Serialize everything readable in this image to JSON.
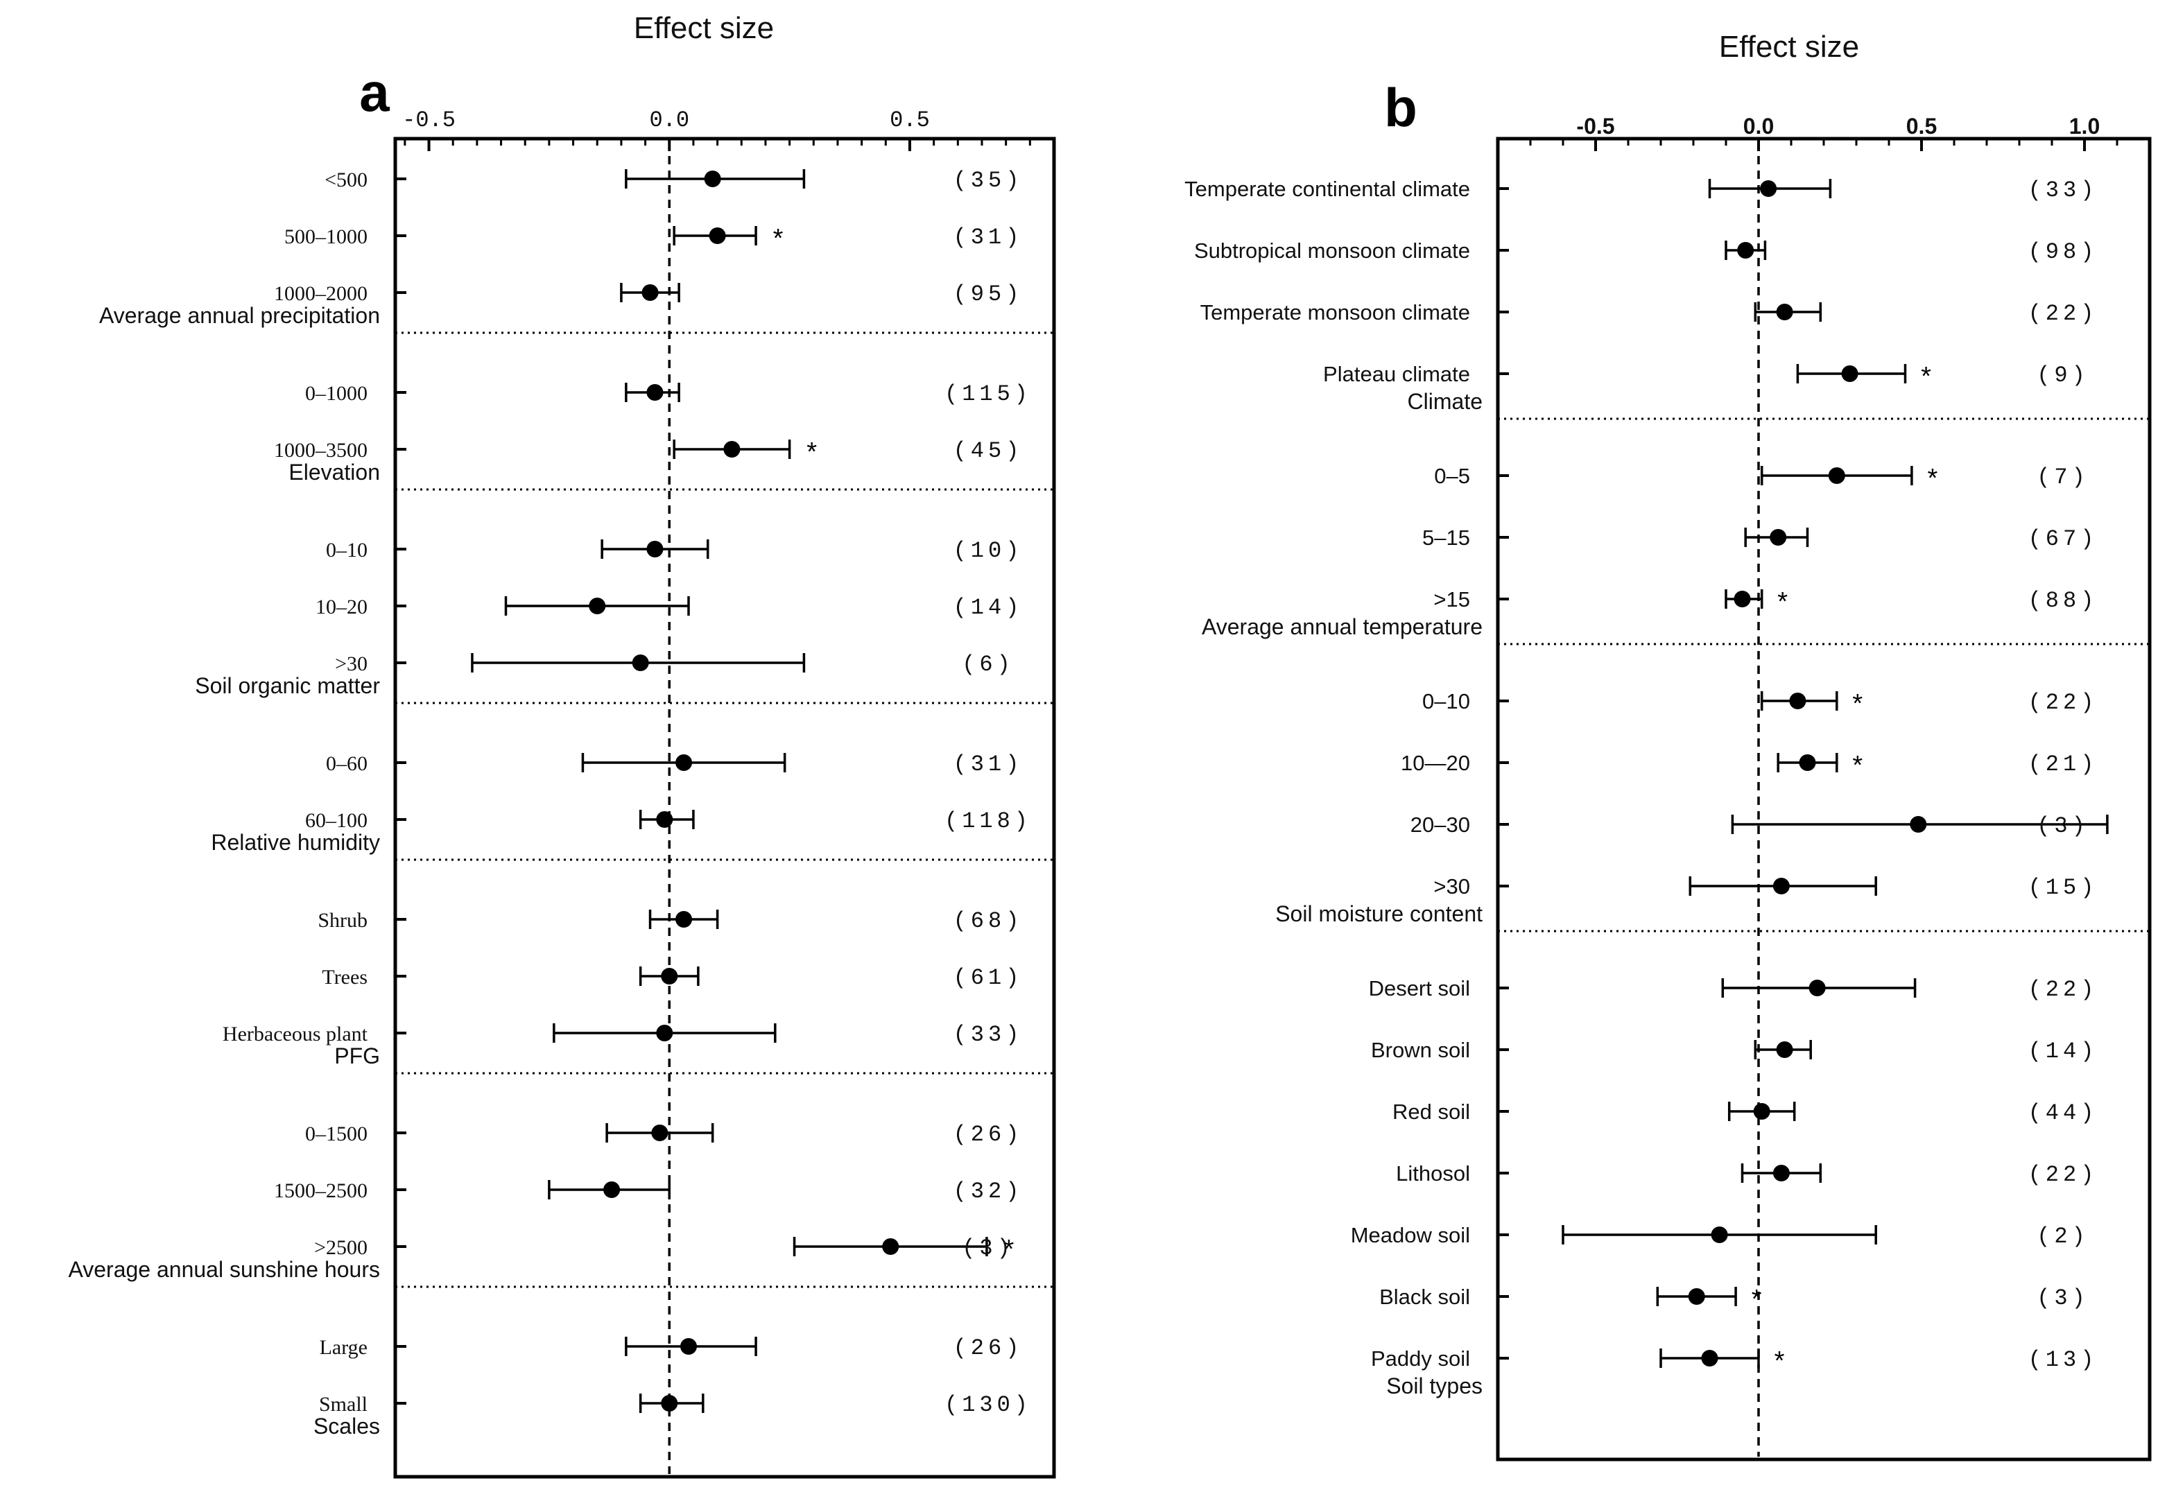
{
  "chart_data": [
    {
      "type": "scatter",
      "panel_label": "a",
      "title": "Effect size",
      "xlim": [
        -0.57,
        0.8
      ],
      "x_ticks": [
        -0.5,
        0.0,
        0.5
      ],
      "x_tick_labels": [
        "-0.5",
        "0.0",
        "0.5"
      ],
      "reference_line": 0.0,
      "rows": [
        {
          "label": "<500",
          "mean": 0.09,
          "lo": -0.09,
          "hi": 0.28,
          "n": "(35)",
          "sig": ""
        },
        {
          "label": "500–1000",
          "mean": 0.1,
          "lo": 0.01,
          "hi": 0.18,
          "n": "(31)",
          "sig": "*"
        },
        {
          "label": "1000–2000",
          "mean": -0.04,
          "lo": -0.1,
          "hi": 0.02,
          "n": "(95)",
          "sig": ""
        },
        {
          "group": "Average annual precipitation"
        },
        {
          "label": "0–1000",
          "mean": -0.03,
          "lo": -0.09,
          "hi": 0.02,
          "n": "(115)",
          "sig": ""
        },
        {
          "label": "1000–3500",
          "mean": 0.13,
          "lo": 0.01,
          "hi": 0.25,
          "n": "(45)",
          "sig": "*"
        },
        {
          "group": "Elevation"
        },
        {
          "label": "0–10",
          "mean": -0.03,
          "lo": -0.14,
          "hi": 0.08,
          "n": "(10)",
          "sig": ""
        },
        {
          "label": "10–20",
          "mean": -0.15,
          "lo": -0.34,
          "hi": 0.04,
          "n": "(14)",
          "sig": ""
        },
        {
          "label": ">30",
          "mean": -0.06,
          "lo": -0.41,
          "hi": 0.28,
          "n": "(6)",
          "sig": ""
        },
        {
          "group": "Soil organic matter"
        },
        {
          "label": "0–60",
          "mean": 0.03,
          "lo": -0.18,
          "hi": 0.24,
          "n": "(31)",
          "sig": ""
        },
        {
          "label": "60–100",
          "mean": -0.01,
          "lo": -0.06,
          "hi": 0.05,
          "n": "(118)",
          "sig": ""
        },
        {
          "group": "Relative humidity"
        },
        {
          "label": "Shrub",
          "mean": 0.03,
          "lo": -0.04,
          "hi": 0.1,
          "n": "(68)",
          "sig": ""
        },
        {
          "label": "Trees",
          "mean": 0.0,
          "lo": -0.06,
          "hi": 0.06,
          "n": "(61)",
          "sig": ""
        },
        {
          "label": "Herbaceous plant",
          "mean": -0.01,
          "lo": -0.24,
          "hi": 0.22,
          "n": "(33)",
          "sig": ""
        },
        {
          "group": "PFG"
        },
        {
          "label": "0–1500",
          "mean": -0.02,
          "lo": -0.13,
          "hi": 0.09,
          "n": "(26)",
          "sig": ""
        },
        {
          "label": "1500–2500",
          "mean": -0.12,
          "lo": -0.25,
          "hi": 0.0,
          "n": "(32)",
          "sig": ""
        },
        {
          "label": ">2500",
          "mean": 0.46,
          "lo": 0.26,
          "hi": 0.66,
          "n": "(3)",
          "sig": "*"
        },
        {
          "group": "Average annual sunshine hours"
        },
        {
          "label": "Large",
          "mean": 0.04,
          "lo": -0.09,
          "hi": 0.18,
          "n": "(26)",
          "sig": ""
        },
        {
          "label": "Small",
          "mean": 0.0,
          "lo": -0.06,
          "hi": 0.07,
          "n": "(130)",
          "sig": ""
        },
        {
          "group": "Scales"
        }
      ]
    },
    {
      "type": "scatter",
      "panel_label": "b",
      "title": "Effect size",
      "xlim": [
        -0.8,
        1.2
      ],
      "x_ticks": [
        -0.5,
        0.0,
        0.5,
        1.0
      ],
      "x_tick_labels": [
        "-0.5",
        "0.0",
        "0.5",
        "1.0"
      ],
      "reference_line": 0.0,
      "rows": [
        {
          "label": "Temperate continental climate",
          "mean": 0.03,
          "lo": -0.15,
          "hi": 0.22,
          "n": "(33)",
          "sig": ""
        },
        {
          "label": "Subtropical monsoon climate",
          "mean": -0.04,
          "lo": -0.1,
          "hi": 0.02,
          "n": "(98)",
          "sig": ""
        },
        {
          "label": "Temperate monsoon climate",
          "mean": 0.08,
          "lo": -0.01,
          "hi": 0.19,
          "n": "(22)",
          "sig": ""
        },
        {
          "label": "Plateau climate",
          "mean": 0.28,
          "lo": 0.12,
          "hi": 0.45,
          "n": "(9)",
          "sig": "*"
        },
        {
          "group": "Climate"
        },
        {
          "label": "0–5",
          "mean": 0.24,
          "lo": 0.01,
          "hi": 0.47,
          "n": "(7)",
          "sig": "*"
        },
        {
          "label": "5–15",
          "mean": 0.06,
          "lo": -0.04,
          "hi": 0.15,
          "n": "(67)",
          "sig": ""
        },
        {
          "label": ">15",
          "mean": -0.05,
          "lo": -0.1,
          "hi": 0.01,
          "n": "(88)",
          "sig": "*"
        },
        {
          "group": "Average annual temperature"
        },
        {
          "label": "0–10",
          "mean": 0.12,
          "lo": 0.01,
          "hi": 0.24,
          "n": "(22)",
          "sig": "*"
        },
        {
          "label": "10—20",
          "mean": 0.15,
          "lo": 0.06,
          "hi": 0.24,
          "n": "(21)",
          "sig": "*"
        },
        {
          "label": "20–30",
          "mean": 0.49,
          "lo": -0.08,
          "hi": 1.07,
          "n": "(3)",
          "sig": ""
        },
        {
          "label": ">30",
          "mean": 0.07,
          "lo": -0.21,
          "hi": 0.36,
          "n": "(15)",
          "sig": ""
        },
        {
          "group": "Soil moisture content"
        },
        {
          "label": "Desert soil",
          "mean": 0.18,
          "lo": -0.11,
          "hi": 0.48,
          "n": "(22)",
          "sig": ""
        },
        {
          "label": "Brown soil",
          "mean": 0.08,
          "lo": -0.01,
          "hi": 0.16,
          "n": "(14)",
          "sig": ""
        },
        {
          "label": "Red soil",
          "mean": 0.01,
          "lo": -0.09,
          "hi": 0.11,
          "n": "(44)",
          "sig": ""
        },
        {
          "label": "Lithosol",
          "mean": 0.07,
          "lo": -0.05,
          "hi": 0.19,
          "n": "(22)",
          "sig": ""
        },
        {
          "label": "Meadow soil",
          "mean": -0.12,
          "lo": -0.6,
          "hi": 0.36,
          "n": "(2)",
          "sig": ""
        },
        {
          "label": "Black soil",
          "mean": -0.19,
          "lo": -0.31,
          "hi": -0.07,
          "n": "(3)",
          "sig": "*"
        },
        {
          "label": "Paddy soil",
          "mean": -0.15,
          "lo": -0.3,
          "hi": 0.0,
          "n": "(13)",
          "sig": "*"
        },
        {
          "group": "Soil types"
        }
      ]
    }
  ]
}
